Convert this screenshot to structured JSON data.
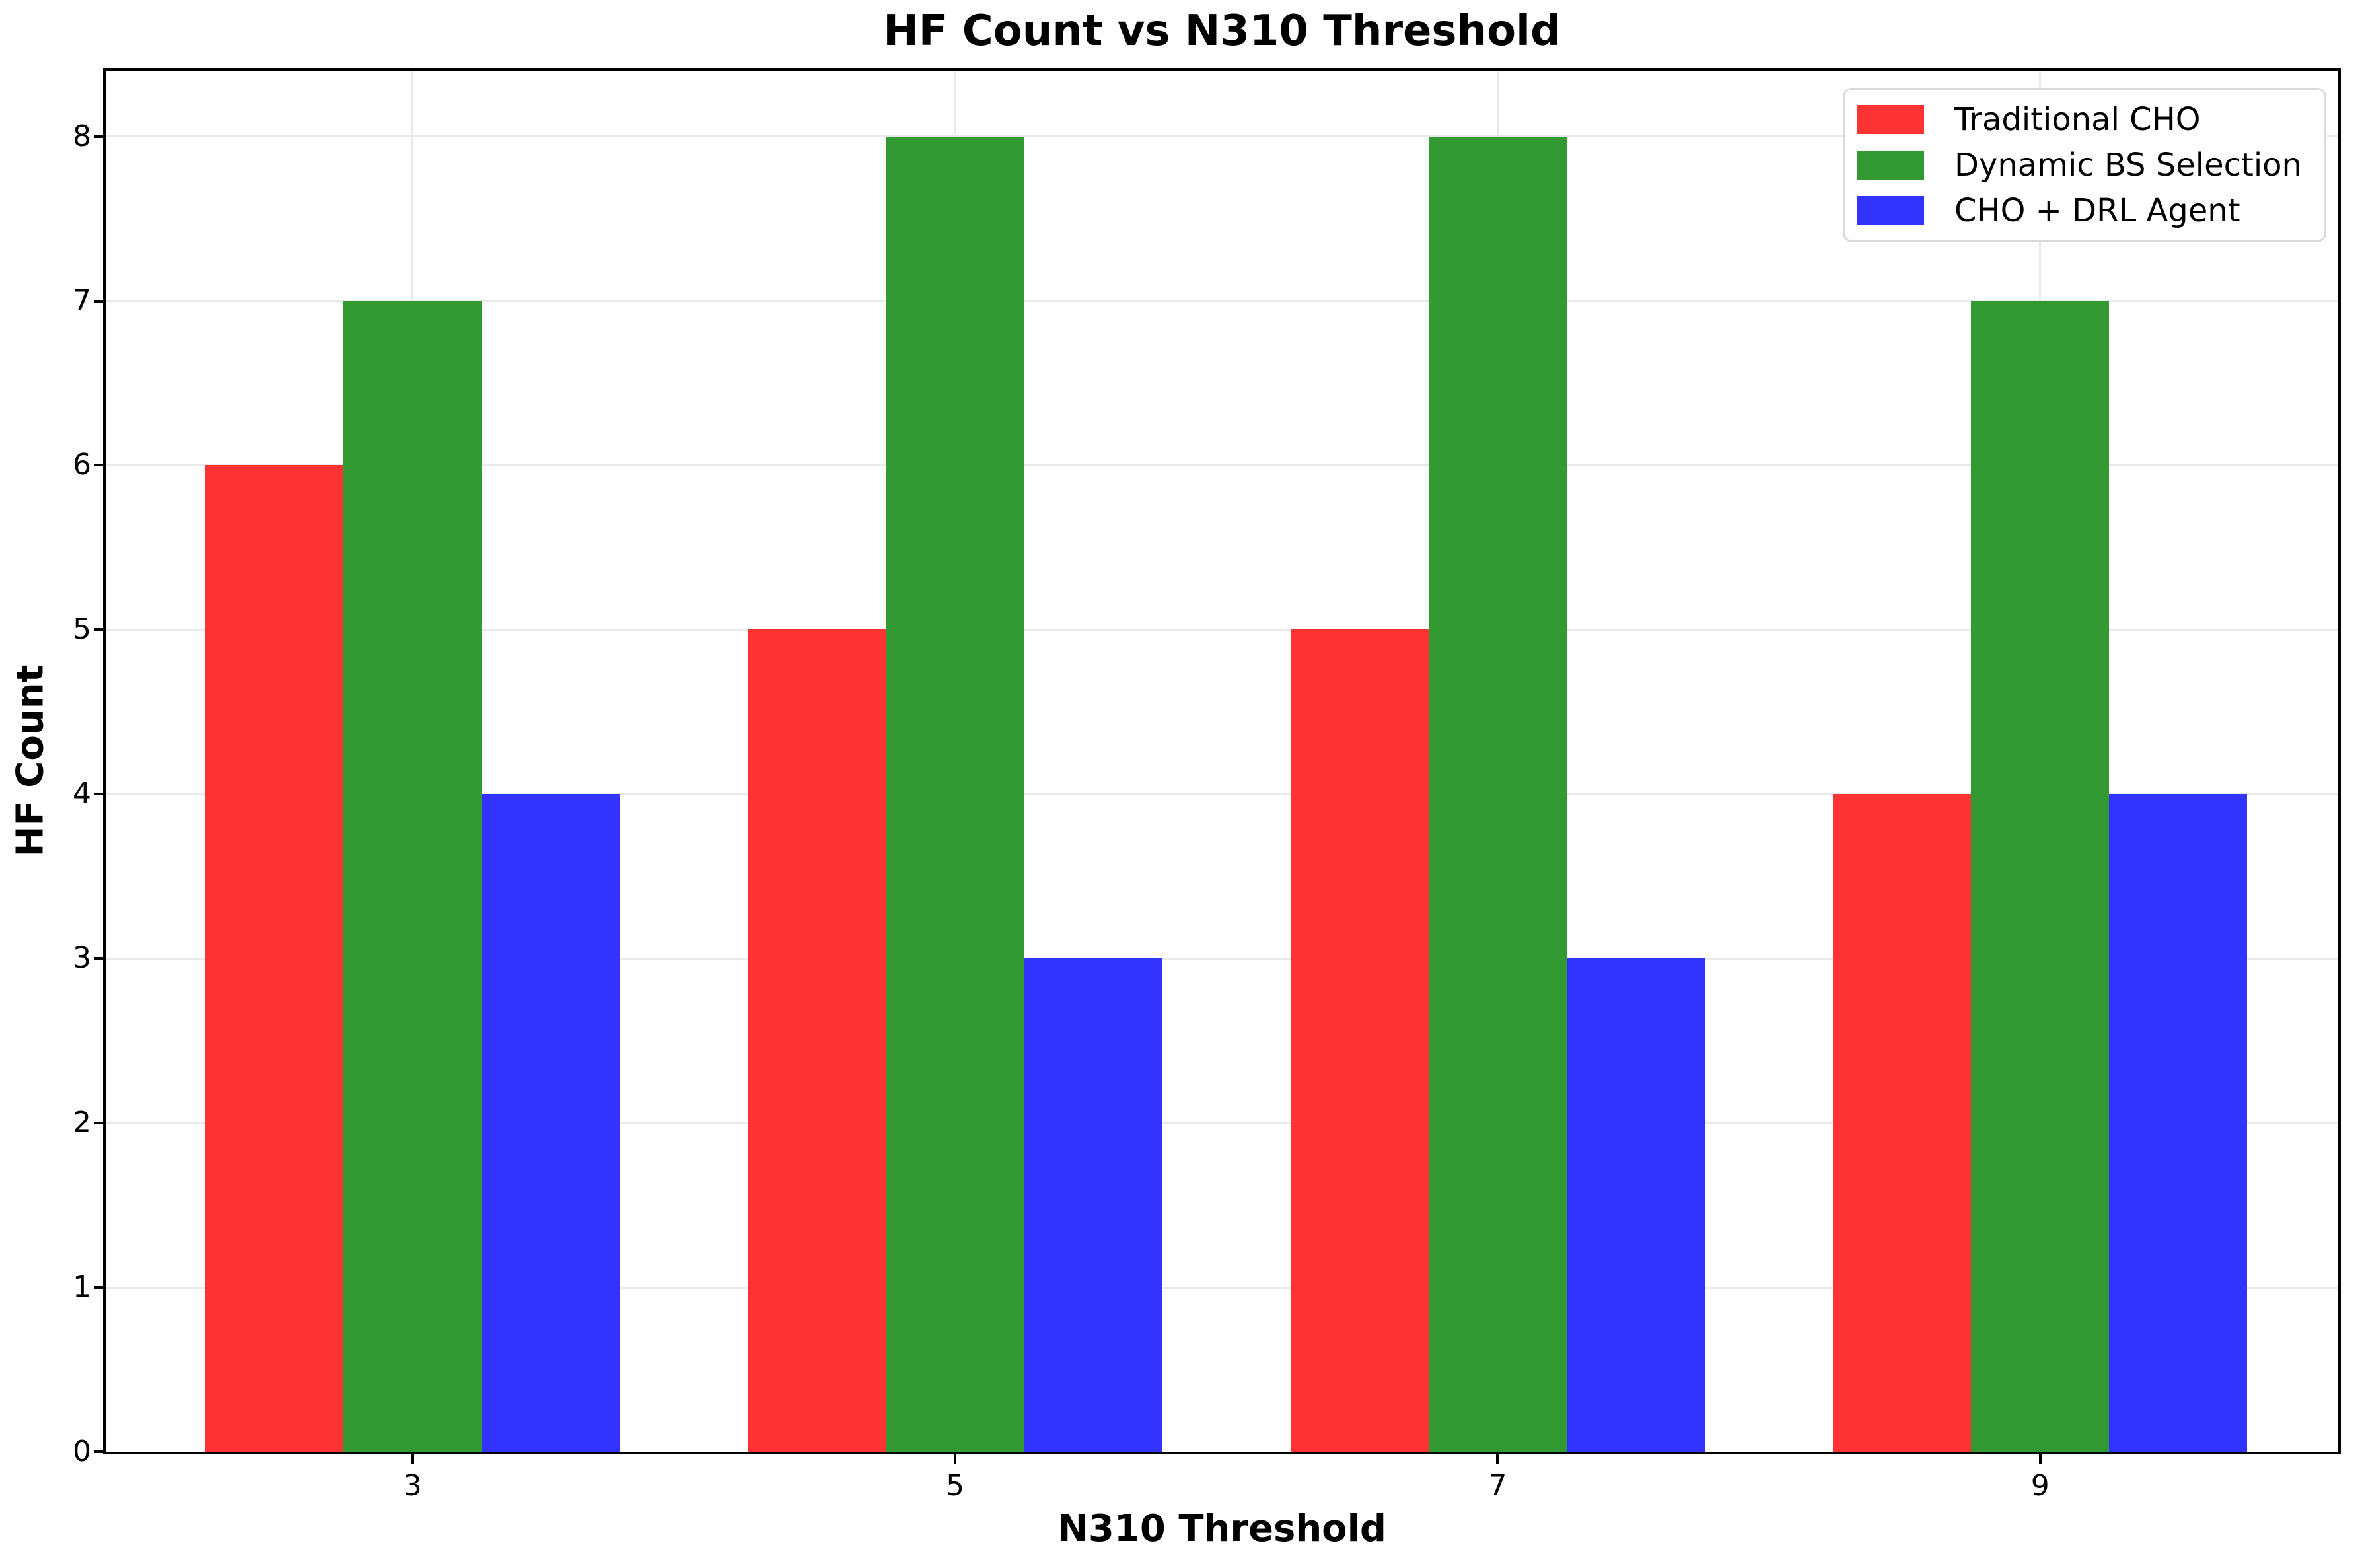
{
  "title": "HF Count vs N310 Threshold",
  "chart_data": {
    "type": "bar",
    "title": "HF Count vs N310 Threshold",
    "xlabel": "N310 Threshold",
    "ylabel": "HF Count",
    "categories": [
      "3",
      "5",
      "7",
      "9"
    ],
    "series": [
      {
        "name": "Traditional CHO",
        "color": "#ff3333",
        "values": [
          6,
          5,
          5,
          4
        ]
      },
      {
        "name": "Dynamic BS Selection",
        "color": "#339933",
        "values": [
          7,
          8,
          8,
          7
        ]
      },
      {
        "name": "CHO + DRL Agent",
        "color": "#3333ff",
        "values": [
          4,
          3,
          3,
          4
        ]
      }
    ],
    "ylim": [
      0,
      8.4
    ],
    "yticks": [
      0,
      1,
      2,
      3,
      4,
      5,
      6,
      7,
      8
    ],
    "grid": true,
    "legend_position": "upper right",
    "colors": {
      "grid": "#e9e9e9",
      "spine": "#000000",
      "legend_border": "#d9d9d9",
      "background": "#ffffff"
    }
  }
}
